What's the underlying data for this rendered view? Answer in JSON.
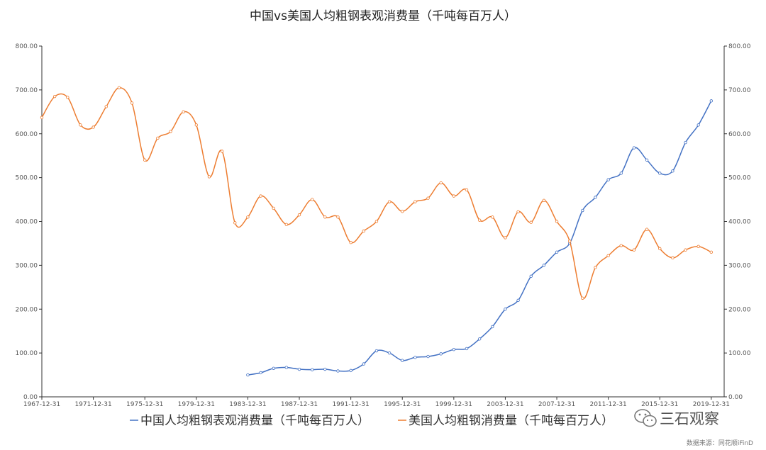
{
  "chart_data": {
    "type": "line",
    "title": "中国vs美国人均粗钢表观消费量（千吨每百万人）",
    "x": [
      1967,
      1968,
      1969,
      1970,
      1971,
      1972,
      1973,
      1974,
      1975,
      1976,
      1977,
      1978,
      1979,
      1980,
      1981,
      1982,
      1983,
      1984,
      1985,
      1986,
      1987,
      1988,
      1989,
      1990,
      1991,
      1992,
      1993,
      1994,
      1995,
      1996,
      1997,
      1998,
      1999,
      2000,
      2001,
      2002,
      2003,
      2004,
      2005,
      2006,
      2007,
      2008,
      2009,
      2010,
      2011,
      2012,
      2013,
      2014,
      2015,
      2016,
      2017,
      2018,
      2019,
      2020
    ],
    "x_tick_labels": [
      "1967-12-31",
      "1971-12-31",
      "1975-12-31",
      "1979-12-31",
      "1983-12-31",
      "1987-12-31",
      "1991-12-31",
      "1995-12-31",
      "1999-12-31",
      "2003-12-31",
      "2007-12-31",
      "2011-12-31",
      "2015-12-31",
      "2019-12-31"
    ],
    "x_tick_years": [
      1967,
      1971,
      1975,
      1979,
      1983,
      1987,
      1991,
      1995,
      1999,
      2003,
      2007,
      2011,
      2015,
      2019
    ],
    "y_ticks": [
      "0.00",
      "100.00",
      "200.00",
      "300.00",
      "400.00",
      "500.00",
      "600.00",
      "700.00",
      "800.00"
    ],
    "ylim": [
      0,
      800
    ],
    "legend_position": "bottom-center",
    "series": [
      {
        "name": "中国人均粗钢表观消费量（千吨每百万人）",
        "color": "#4472c4",
        "values": [
          null,
          null,
          null,
          null,
          null,
          null,
          null,
          null,
          null,
          null,
          null,
          null,
          null,
          null,
          null,
          null,
          50,
          55,
          65,
          67,
          63,
          62,
          63,
          59,
          60,
          75,
          105,
          100,
          83,
          90,
          92,
          98,
          108,
          110,
          132,
          160,
          200,
          220,
          275,
          300,
          330,
          350,
          425,
          455,
          495,
          510,
          568,
          540,
          510,
          515,
          580,
          620,
          675,
          null
        ]
      },
      {
        "name": "美国人均粗钢消费量（千吨每百万人）",
        "color": "#ed7d31",
        "values": [
          637,
          685,
          683,
          620,
          615,
          662,
          705,
          670,
          540,
          590,
          605,
          650,
          620,
          502,
          560,
          397,
          410,
          458,
          430,
          393,
          415,
          450,
          410,
          410,
          352,
          378,
          400,
          445,
          423,
          445,
          453,
          488,
          458,
          472,
          403,
          410,
          363,
          422,
          398,
          448,
          400,
          355,
          225,
          295,
          322,
          345,
          335,
          382,
          338,
          317,
          335,
          343,
          330,
          null
        ]
      }
    ]
  },
  "watermark": {
    "text": "三石观察",
    "icon": "wechat-icon"
  },
  "source": "数据来源：同花顺iFinD"
}
